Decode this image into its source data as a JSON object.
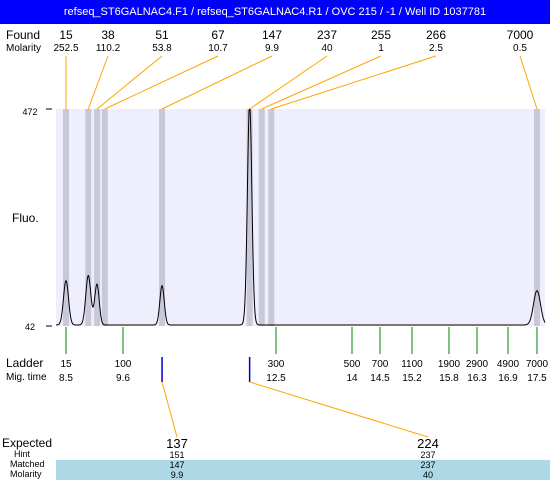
{
  "title": "refseq_ST6GALNAC4.F1 / refseq_ST6GALNAC4.R1 / OVC 215 / -1 / Well ID 1037781",
  "labels": {
    "found": "Found",
    "molarity": "Molarity",
    "fluo": "Fluo.",
    "ladder": "Ladder",
    "mig_time": "Mig. time",
    "expected": "Expected",
    "hint": "Hint",
    "matched": "Matched",
    "molarity_bottom": "Molarity"
  },
  "colors": {
    "title_bg": "#0000ff",
    "plot_bg": "#eeeefc",
    "found_line": "#ffa500",
    "band": "#c8c8d8",
    "ladder_tick": "#008000",
    "expected_tick": "#0000cc",
    "matched_band": "#add8e6"
  },
  "chart_data": {
    "type": "line",
    "title": "refseq_ST6GALNAC4.F1 / refseq_ST6GALNAC4.R1 / OVC 215 / -1 / Well ID 1037781",
    "ylabel": "Fluo.",
    "xlabel": "Mig. time",
    "ylim": [
      42,
      472
    ],
    "y_ticks": [
      "472",
      "42"
    ],
    "x_unit": "mig_time",
    "found_peaks": [
      {
        "size": "15",
        "molarity": "252.5",
        "mig_time": 8.5
      },
      {
        "size": "38",
        "molarity": "110.2",
        "mig_time": 8.93
      },
      {
        "size": "51",
        "molarity": "53.8",
        "mig_time": 9.1
      },
      {
        "size": "67",
        "molarity": "10.7",
        "mig_time": 9.25
      },
      {
        "size": "147",
        "molarity": "9.9",
        "mig_time": 10.34
      },
      {
        "size": "237",
        "molarity": "40",
        "mig_time": 12.0
      },
      {
        "size": "255",
        "molarity": "1",
        "mig_time": 12.23
      },
      {
        "size": "266",
        "molarity": "2.5",
        "mig_time": 12.41
      },
      {
        "size": "7000",
        "molarity": "0.5",
        "mig_time": 17.5
      }
    ],
    "ladder": [
      {
        "size": "15",
        "mig_time": "8.5"
      },
      {
        "size": "100",
        "mig_time": "9.6"
      },
      {
        "size": "300",
        "mig_time": "12.5"
      },
      {
        "size": "500",
        "mig_time": "14"
      },
      {
        "size": "700",
        "mig_time": "14.5"
      },
      {
        "size": "1100",
        "mig_time": "15.2"
      },
      {
        "size": "1900",
        "mig_time": "15.8"
      },
      {
        "size": "2900",
        "mig_time": "16.3"
      },
      {
        "size": "4900",
        "mig_time": "16.9"
      },
      {
        "size": "7000",
        "mig_time": "17.5"
      }
    ],
    "expected": [
      {
        "size": "137",
        "hint": "151",
        "matched": "147",
        "molarity": "9.9",
        "mig_time": 10.34
      },
      {
        "size": "224",
        "hint": "237",
        "matched": "237",
        "molarity": "40",
        "mig_time": 12.0
      }
    ],
    "trace_peaks": [
      {
        "mig_time": 8.5,
        "height": 130
      },
      {
        "mig_time": 8.93,
        "height": 140
      },
      {
        "mig_time": 9.1,
        "height": 110
      },
      {
        "mig_time": 10.34,
        "height": 120
      },
      {
        "mig_time": 12.0,
        "height": 472
      },
      {
        "mig_time": 17.5,
        "height": 110
      }
    ]
  }
}
